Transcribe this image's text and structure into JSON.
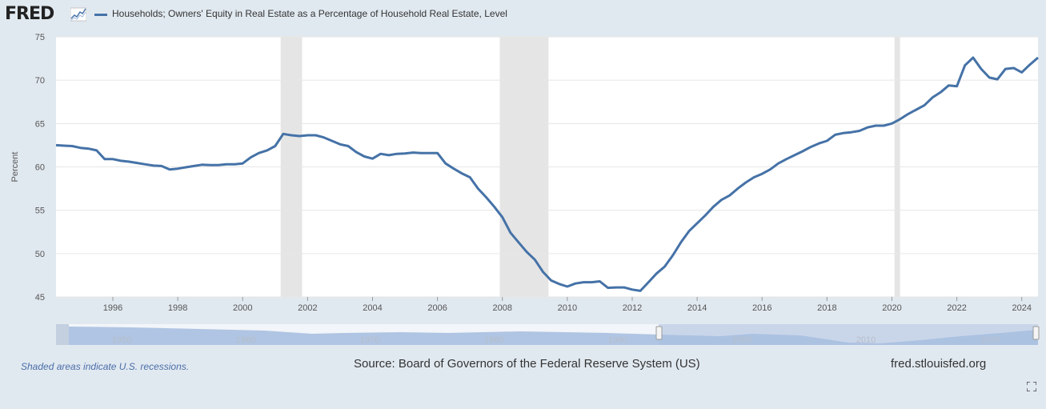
{
  "header": {
    "logo_text": "FRED",
    "series_label": "Households; Owners' Equity in Real Estate as a Percentage of Household Real Estate, Level"
  },
  "footer": {
    "recession_note": "Shaded areas indicate U.S. recessions.",
    "source": "Source: Board of Governors of the Federal Reserve System (US)",
    "site": "fred.stlouisfed.org"
  },
  "colors": {
    "series": "#4572a7",
    "recession": "#e5e5e5",
    "navigator": "#a9c0e0"
  },
  "chart_data": {
    "type": "line",
    "title": "",
    "xlabel": "",
    "ylabel": "Percent",
    "xlim": [
      1994.25,
      2024.5
    ],
    "ylim": [
      45,
      75
    ],
    "x_ticks": [
      "1996",
      "1998",
      "2000",
      "2002",
      "2004",
      "2006",
      "2008",
      "2010",
      "2012",
      "2014",
      "2016",
      "2018",
      "2020",
      "2022",
      "2024"
    ],
    "y_ticks": [
      "45",
      "50",
      "55",
      "60",
      "65",
      "70",
      "75"
    ],
    "grid": true,
    "legend": "top-left",
    "recessions": [
      [
        2001.17,
        2001.83
      ],
      [
        2007.92,
        2009.42
      ],
      [
        2020.08,
        2020.25
      ]
    ],
    "series": [
      {
        "name": "Households; Owners' Equity in Real Estate as a Percentage of Household Real Estate, Level",
        "x": [
          1994.25,
          1994.5,
          1994.75,
          1995.0,
          1995.25,
          1995.5,
          1995.75,
          1996.0,
          1996.25,
          1996.5,
          1996.75,
          1997.0,
          1997.25,
          1997.5,
          1997.75,
          1998.0,
          1998.25,
          1998.5,
          1998.75,
          1999.0,
          1999.25,
          1999.5,
          1999.75,
          2000.0,
          2000.25,
          2000.5,
          2000.75,
          2001.0,
          2001.25,
          2001.5,
          2001.75,
          2002.0,
          2002.25,
          2002.5,
          2002.75,
          2003.0,
          2003.25,
          2003.5,
          2003.75,
          2004.0,
          2004.25,
          2004.5,
          2004.75,
          2005.0,
          2005.25,
          2005.5,
          2005.75,
          2006.0,
          2006.25,
          2006.5,
          2006.75,
          2007.0,
          2007.25,
          2007.5,
          2007.75,
          2008.0,
          2008.25,
          2008.5,
          2008.75,
          2009.0,
          2009.25,
          2009.5,
          2009.75,
          2010.0,
          2010.25,
          2010.5,
          2010.75,
          2011.0,
          2011.25,
          2011.5,
          2011.75,
          2012.0,
          2012.25,
          2012.5,
          2012.75,
          2013.0,
          2013.25,
          2013.5,
          2013.75,
          2014.0,
          2014.25,
          2014.5,
          2014.75,
          2015.0,
          2015.25,
          2015.5,
          2015.75,
          2016.0,
          2016.25,
          2016.5,
          2016.75,
          2017.0,
          2017.25,
          2017.5,
          2017.75,
          2018.0,
          2018.25,
          2018.5,
          2018.75,
          2019.0,
          2019.25,
          2019.5,
          2019.75,
          2020.0,
          2020.25,
          2020.5,
          2020.75,
          2021.0,
          2021.25,
          2021.5,
          2021.75,
          2022.0,
          2022.25,
          2022.5,
          2022.75,
          2023.0,
          2023.25,
          2023.5,
          2023.75,
          2024.0,
          2024.25,
          2024.5
        ],
        "y": [
          62.5,
          62.45,
          62.4,
          62.2,
          62.1,
          61.9,
          60.9,
          60.9,
          60.7,
          60.6,
          60.45,
          60.3,
          60.15,
          60.1,
          59.7,
          59.8,
          59.95,
          60.1,
          60.25,
          60.2,
          60.2,
          60.3,
          60.3,
          60.4,
          61.1,
          61.6,
          61.9,
          62.4,
          63.8,
          63.65,
          63.55,
          63.65,
          63.65,
          63.4,
          63.0,
          62.6,
          62.4,
          61.7,
          61.2,
          60.95,
          61.5,
          61.35,
          61.5,
          61.55,
          61.65,
          61.6,
          61.6,
          61.6,
          60.4,
          59.8,
          59.25,
          58.8,
          57.5,
          56.5,
          55.4,
          54.2,
          52.4,
          51.3,
          50.2,
          49.3,
          47.9,
          46.9,
          46.5,
          46.2,
          46.55,
          46.7,
          46.7,
          46.8,
          46.05,
          46.1,
          46.1,
          45.85,
          45.7,
          46.7,
          47.7,
          48.5,
          49.8,
          51.3,
          52.6,
          53.5,
          54.4,
          55.4,
          56.2,
          56.7,
          57.5,
          58.2,
          58.8,
          59.2,
          59.7,
          60.4,
          60.9,
          61.35,
          61.8,
          62.3,
          62.7,
          63.0,
          63.7,
          63.9,
          64.0,
          64.15,
          64.55,
          64.75,
          64.75,
          65.0,
          65.5,
          66.1,
          66.6,
          67.1,
          68.0,
          68.6,
          69.4,
          69.3,
          71.7,
          72.6,
          71.3,
          70.3,
          70.1,
          71.3,
          71.4,
          70.9,
          71.8,
          72.6
        ]
      }
    ],
    "navigator_ticks": [
      "1950",
      "1960",
      "1970",
      "1980",
      "1990",
      "2000",
      "2010",
      "2020"
    ]
  }
}
